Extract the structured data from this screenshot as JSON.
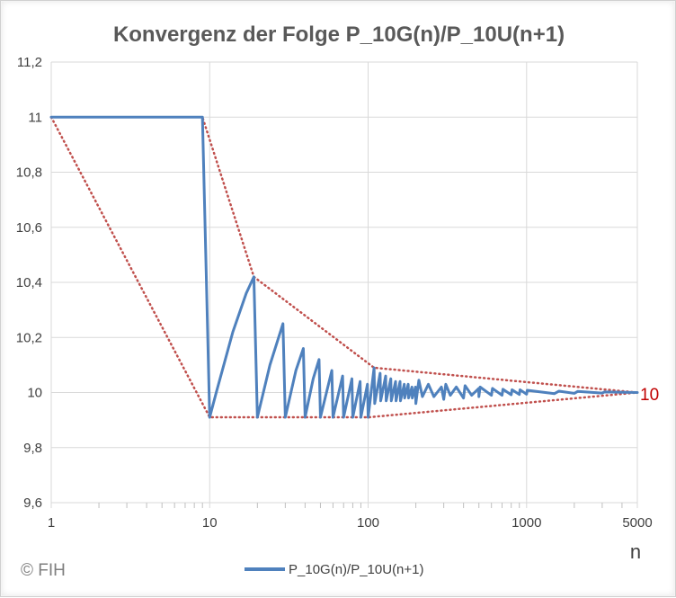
{
  "chart_data": {
    "type": "line",
    "title": "Konvergenz der Folge P_10G(n)/P_10U(n+1)",
    "xlabel": "n",
    "x_scale": "log",
    "xlim": [
      1,
      5000
    ],
    "ylim": [
      9.6,
      11.2
    ],
    "x_ticks": [
      {
        "value": 1,
        "label": "1"
      },
      {
        "value": 10,
        "label": "10"
      },
      {
        "value": 100,
        "label": "100"
      },
      {
        "value": 1000,
        "label": "1000"
      },
      {
        "value": 5000,
        "label": "5000"
      }
    ],
    "y_ticks": [
      {
        "value": 9.6,
        "label": "9,6"
      },
      {
        "value": 9.8,
        "label": "9,8"
      },
      {
        "value": 10.0,
        "label": "10"
      },
      {
        "value": 10.2,
        "label": "10,2"
      },
      {
        "value": 10.4,
        "label": "10,4"
      },
      {
        "value": 10.6,
        "label": "10,6"
      },
      {
        "value": 10.8,
        "label": "10,8"
      },
      {
        "value": 11.0,
        "label": "11"
      },
      {
        "value": 11.2,
        "label": "11,2"
      }
    ],
    "grid": {
      "horizontal": true,
      "vertical_major": true,
      "vertical_minor_ticks": true
    },
    "series": [
      {
        "name": "P_10G(n)/P_10U(n+1)",
        "color": "#4f81bd",
        "points": [
          [
            1,
            11.0
          ],
          [
            9,
            11.0
          ],
          [
            10,
            9.91
          ],
          [
            11,
            10.0
          ],
          [
            14,
            10.22
          ],
          [
            17,
            10.36
          ],
          [
            19,
            10.42
          ],
          [
            20,
            9.91
          ],
          [
            24,
            10.1
          ],
          [
            29,
            10.25
          ],
          [
            30,
            9.91
          ],
          [
            35,
            10.08
          ],
          [
            39,
            10.16
          ],
          [
            40,
            9.91
          ],
          [
            45,
            10.05
          ],
          [
            49,
            10.12
          ],
          [
            50,
            9.91
          ],
          [
            59,
            10.08
          ],
          [
            60,
            9.91
          ],
          [
            69,
            10.06
          ],
          [
            70,
            9.91
          ],
          [
            79,
            10.05
          ],
          [
            80,
            9.91
          ],
          [
            89,
            10.04
          ],
          [
            90,
            9.91
          ],
          [
            99,
            10.03
          ],
          [
            100,
            9.91
          ],
          [
            109,
            10.09
          ],
          [
            110,
            9.96
          ],
          [
            119,
            10.07
          ],
          [
            120,
            9.97
          ],
          [
            129,
            10.06
          ],
          [
            130,
            9.97
          ],
          [
            139,
            10.05
          ],
          [
            140,
            9.97
          ],
          [
            149,
            10.04
          ],
          [
            150,
            9.97
          ],
          [
            159,
            10.04
          ],
          [
            160,
            9.97
          ],
          [
            169,
            10.03
          ],
          [
            170,
            9.98
          ],
          [
            179,
            10.03
          ],
          [
            180,
            9.98
          ],
          [
            189,
            10.02
          ],
          [
            190,
            9.98
          ],
          [
            199,
            10.02
          ],
          [
            200,
            9.96
          ],
          [
            209,
            10.045
          ],
          [
            220,
            9.985
          ],
          [
            240,
            10.03
          ],
          [
            260,
            9.985
          ],
          [
            290,
            10.02
          ],
          [
            300,
            9.975
          ],
          [
            309,
            10.03
          ],
          [
            330,
            9.99
          ],
          [
            360,
            10.02
          ],
          [
            400,
            9.98
          ],
          [
            409,
            10.025
          ],
          [
            450,
            9.99
          ],
          [
            499,
            10.015
          ],
          [
            500,
            9.985
          ],
          [
            509,
            10.02
          ],
          [
            600,
            9.99
          ],
          [
            609,
            10.015
          ],
          [
            700,
            9.99
          ],
          [
            709,
            10.012
          ],
          [
            800,
            9.992
          ],
          [
            809,
            10.01
          ],
          [
            900,
            9.993
          ],
          [
            909,
            10.01
          ],
          [
            1000,
            9.994
          ],
          [
            1009,
            10.008
          ],
          [
            1500,
            9.996
          ],
          [
            1600,
            10.005
          ],
          [
            2000,
            9.997
          ],
          [
            2100,
            10.004
          ],
          [
            3000,
            9.998
          ],
          [
            3100,
            10.002
          ],
          [
            5000,
            10.0
          ]
        ]
      }
    ],
    "envelope": {
      "color": "#c0504d",
      "style": "dotted",
      "upper": [
        [
          1,
          11.0
        ],
        [
          9,
          11.0
        ],
        [
          19,
          10.42
        ],
        [
          109,
          10.09
        ],
        [
          5000,
          10.0
        ]
      ],
      "lower": [
        [
          1,
          11.0
        ],
        [
          10,
          9.91
        ],
        [
          100,
          9.91
        ],
        [
          5000,
          10.0
        ]
      ]
    },
    "end_label": "10",
    "legend": {
      "position": "bottom",
      "label": "P_10G(n)/P_10U(n+1)"
    },
    "copyright": "© FIH"
  }
}
